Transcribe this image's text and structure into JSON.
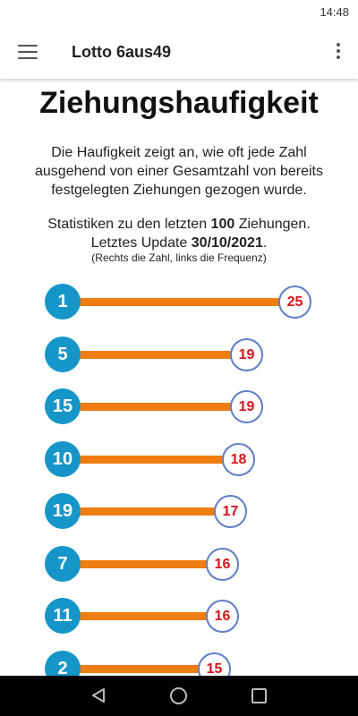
{
  "status": {
    "time": "14:48"
  },
  "appbar": {
    "title": "Lotto 6aus49",
    "menu_icon": "hamburger-menu-icon",
    "more_icon": "more-vert-icon"
  },
  "main": {
    "heading": "Ziehungshaufigkeit",
    "description": "Die Haufigkeit zeigt an, wie oft jede Zahl ausgehend von einer Gesamtzahl von bereits festgelegten Ziehungen gezogen wurde.",
    "stats_prefix": "Statistiken zu den letzten ",
    "stats_count": "100",
    "stats_suffix": " Ziehungen.",
    "update_prefix": "Letztes Update ",
    "update_date": "30/10/2021",
    "update_suffix": ".",
    "note": "(Rechts die Zahl, links die Frequenz)"
  },
  "frequency_rows": [
    {
      "number": "1",
      "frequency": "25"
    },
    {
      "number": "5",
      "frequency": "19"
    },
    {
      "number": "15",
      "frequency": "19"
    },
    {
      "number": "10",
      "frequency": "18"
    },
    {
      "number": "19",
      "frequency": "17"
    },
    {
      "number": "7",
      "frequency": "16"
    },
    {
      "number": "11",
      "frequency": "16"
    },
    {
      "number": "2",
      "frequency": "15"
    }
  ],
  "colors": {
    "number_circle": "#1696c8",
    "bar": "#ee7d12",
    "frequency_text": "#d1161c",
    "frequency_border": "#5f7ec5"
  },
  "navbar": {
    "back_icon": "back-triangle-icon",
    "home_icon": "home-circle-icon",
    "recent_icon": "recent-apps-square-icon"
  }
}
